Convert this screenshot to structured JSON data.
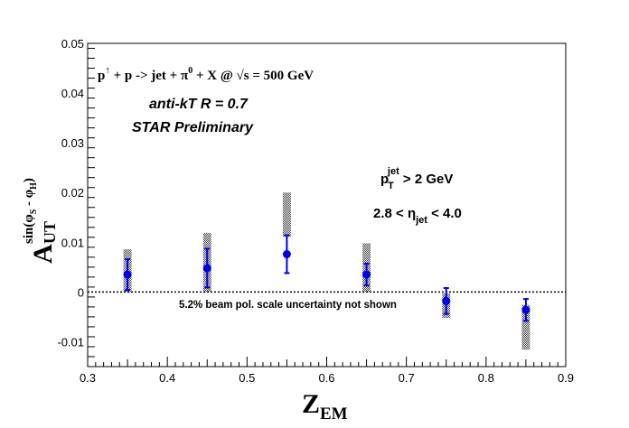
{
  "chart_data": {
    "type": "scatter",
    "title": "",
    "xlabel_main": "Z",
    "xlabel_sub": "EM",
    "ylabel_main": "A",
    "ylabel_sub": "UT",
    "ylabel_sup": "sin(φS - φH)",
    "xlim": [
      0.3,
      0.9
    ],
    "ylim": [
      -0.015,
      0.05
    ],
    "x_ticks": [
      "0.3",
      "0.4",
      "0.5",
      "0.6",
      "0.7",
      "0.8",
      "0.9"
    ],
    "y_ticks": [
      "-0.01",
      "0",
      "0.01",
      "0.02",
      "0.03",
      "0.04",
      "0.05"
    ],
    "grid": false,
    "zero_line": true,
    "series": [
      {
        "x": [
          0.35,
          0.45,
          0.55,
          0.65,
          0.75,
          0.85
        ],
        "y": [
          0.0035,
          0.0048,
          0.0076,
          0.0035,
          -0.0018,
          -0.0036
        ],
        "stat_err": [
          0.0031,
          0.0039,
          0.0038,
          0.0022,
          0.0026,
          0.0022
        ],
        "sys_low": [
          0.0,
          0.0,
          0.0111,
          0.0,
          -0.0052,
          -0.0116
        ],
        "sys_high": [
          0.0086,
          0.0119,
          0.02,
          0.0098,
          -0.0003,
          -0.0026
        ]
      }
    ],
    "annotations": {
      "reaction": "p↑ + p -> jet + π0 + X @ √s = 500 GeV",
      "reaction_parts": [
        "p",
        "↑",
        " + p -> jet +  π",
        "0",
        " + X @  ",
        "√s = 500 GeV"
      ],
      "algorithm": "anti-kT R = 0.7",
      "preliminary": "STAR Preliminary",
      "pt_cut": [
        "p",
        "T",
        "jet",
        " > 2 GeV"
      ],
      "eta_cut": [
        "2.8 <  η",
        "jet",
        " < 4.0"
      ],
      "scale_note": "5.2% beam pol. scale uncertainty not shown"
    },
    "colors": {
      "point": "#0000e6",
      "preliminary": "#ff0000",
      "scale_note": "#a0a0a0",
      "sys_band": "#555555"
    }
  }
}
